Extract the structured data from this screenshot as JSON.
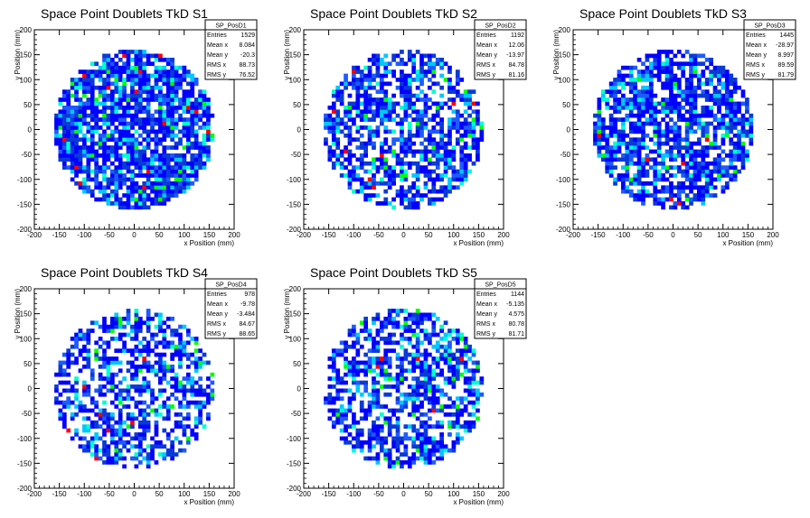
{
  "chart_data": [
    {
      "type": "heatmap",
      "title": "Space Point Doublets TkD S1",
      "xlabel": "x Position (mm)",
      "ylabel": "y Position (mm)",
      "xlim": [
        -200,
        200
      ],
      "ylim": [
        -200,
        200
      ],
      "xticks": [
        -200,
        -150,
        -100,
        -50,
        0,
        50,
        100,
        150,
        200
      ],
      "yticks": [
        -200,
        -150,
        -100,
        -50,
        0,
        50,
        100,
        150,
        200
      ],
      "grid": false,
      "legend_position": "top-right",
      "hist_name": "SP_PosD1",
      "stats": [
        {
          "label": "Entries",
          "value": "1529"
        },
        {
          "label": "Mean x",
          "value": "8.084"
        },
        {
          "label": "Mean y",
          "value": "-20.3"
        },
        {
          "label": "RMS x",
          "value": "88.73"
        },
        {
          "label": "RMS y",
          "value": "76.52"
        }
      ],
      "distribution": {
        "shape": "disk",
        "radius": 160,
        "bin_width": 8,
        "seed": 11,
        "fill_fraction": 0.8
      }
    },
    {
      "type": "heatmap",
      "title": "Space Point Doublets TkD S2",
      "xlabel": "x Position (mm)",
      "ylabel": "y Position (mm)",
      "xlim": [
        -200,
        200
      ],
      "ylim": [
        -200,
        200
      ],
      "xticks": [
        -200,
        -150,
        -100,
        -50,
        0,
        50,
        100,
        150,
        200
      ],
      "yticks": [
        -200,
        -150,
        -100,
        -50,
        0,
        50,
        100,
        150,
        200
      ],
      "grid": false,
      "legend_position": "top-right",
      "hist_name": "SP_PosD2",
      "stats": [
        {
          "label": "Entries",
          "value": "1192"
        },
        {
          "label": "Mean x",
          "value": "12.06"
        },
        {
          "label": "Mean y",
          "value": "-13.97"
        },
        {
          "label": "RMS x",
          "value": "84.78"
        },
        {
          "label": "RMS y",
          "value": "81.16"
        }
      ],
      "distribution": {
        "shape": "disk",
        "radius": 160,
        "bin_width": 8,
        "seed": 23,
        "fill_fraction": 0.62
      }
    },
    {
      "type": "heatmap",
      "title": "Space Point Doublets TkD S3",
      "xlabel": "x Position (mm)",
      "ylabel": "y Position (mm)",
      "xlim": [
        -200,
        200
      ],
      "ylim": [
        -200,
        200
      ],
      "xticks": [
        -200,
        -150,
        -100,
        -50,
        0,
        50,
        100,
        150,
        200
      ],
      "yticks": [
        -200,
        -150,
        -100,
        -50,
        0,
        50,
        100,
        150,
        200
      ],
      "grid": false,
      "legend_position": "top-right",
      "hist_name": "SP_PosD3",
      "stats": [
        {
          "label": "Entries",
          "value": "1445"
        },
        {
          "label": "Mean x",
          "value": "-28.97"
        },
        {
          "label": "Mean y",
          "value": "8.997"
        },
        {
          "label": "RMS x",
          "value": "89.59"
        },
        {
          "label": "RMS y",
          "value": "81.79"
        }
      ],
      "distribution": {
        "shape": "disk",
        "radius": 160,
        "bin_width": 8,
        "seed": 37,
        "fill_fraction": 0.7
      }
    },
    {
      "type": "heatmap",
      "title": "Space Point Doublets TkD S4",
      "xlabel": "x Position (mm)",
      "ylabel": "y Position (mm)",
      "xlim": [
        -200,
        200
      ],
      "ylim": [
        -200,
        200
      ],
      "xticks": [
        -200,
        -150,
        -100,
        -50,
        0,
        50,
        100,
        150,
        200
      ],
      "yticks": [
        -200,
        -150,
        -100,
        -50,
        0,
        50,
        100,
        150,
        200
      ],
      "grid": false,
      "legend_position": "top-right",
      "hist_name": "SP_PosD4",
      "stats": [
        {
          "label": "Entries",
          "value": "978"
        },
        {
          "label": "Mean x",
          "value": "-9.78"
        },
        {
          "label": "Mean y",
          "value": "-3.484"
        },
        {
          "label": "RMS x",
          "value": "84.67"
        },
        {
          "label": "RMS y",
          "value": "88.65"
        }
      ],
      "distribution": {
        "shape": "disk",
        "radius": 160,
        "bin_width": 8,
        "seed": 53,
        "fill_fraction": 0.52
      }
    },
    {
      "type": "heatmap",
      "title": "Space Point Doublets TkD S5",
      "xlabel": "x Position (mm)",
      "ylabel": "y Position (mm)",
      "xlim": [
        -200,
        200
      ],
      "ylim": [
        -200,
        200
      ],
      "xticks": [
        -200,
        -150,
        -100,
        -50,
        0,
        50,
        100,
        150,
        200
      ],
      "yticks": [
        -200,
        -150,
        -100,
        -50,
        0,
        50,
        100,
        150,
        200
      ],
      "grid": false,
      "legend_position": "top-right",
      "hist_name": "SP_PosD5",
      "stats": [
        {
          "label": "Entries",
          "value": "1144"
        },
        {
          "label": "Mean x",
          "value": "-5.135"
        },
        {
          "label": "Mean y",
          "value": "4.575"
        },
        {
          "label": "RMS x",
          "value": "80.78"
        },
        {
          "label": "RMS y",
          "value": "81.71"
        }
      ],
      "distribution": {
        "shape": "disk",
        "radius": 160,
        "bin_width": 8,
        "seed": 71,
        "fill_fraction": 0.6
      }
    }
  ],
  "colors": {
    "palette": [
      "#0000ff",
      "#0a3ad6",
      "#1e5aff",
      "#00c8ff",
      "#00ffd0",
      "#00ff00",
      "#ff0000"
    ],
    "frame": "#000000",
    "background": "#ffffff"
  }
}
